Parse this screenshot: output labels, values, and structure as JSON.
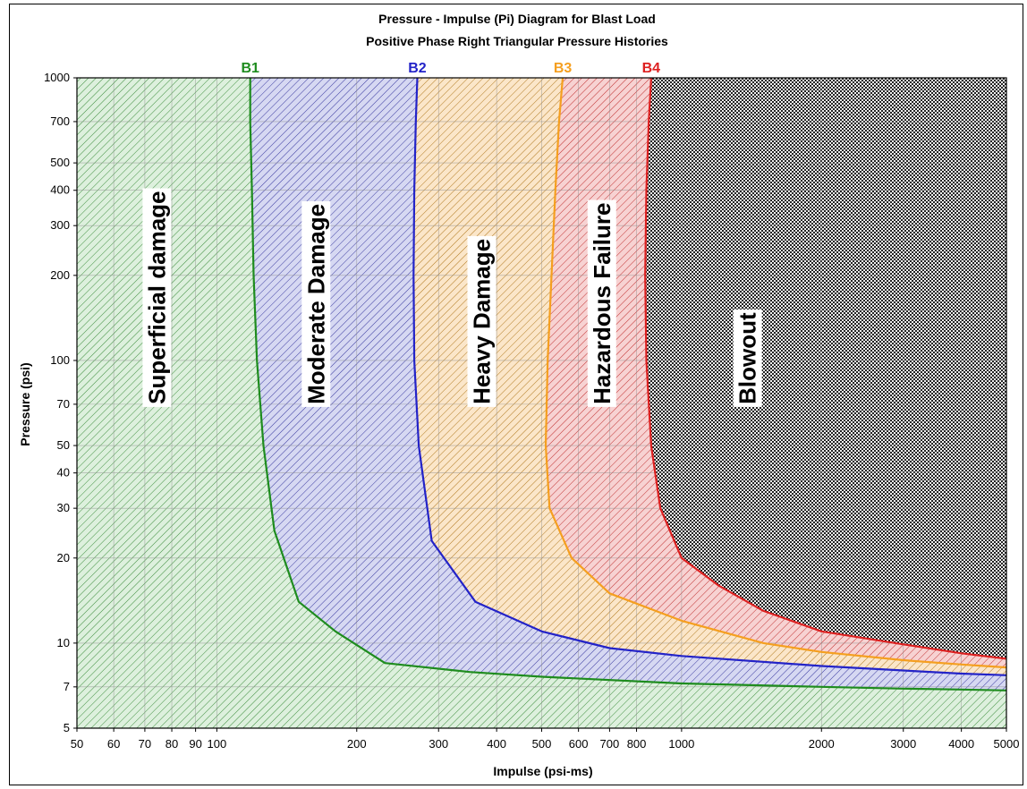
{
  "chart_data": {
    "type": "area",
    "title": "Pressure - Impulse (Pi) Diagram for Blast Load",
    "subtitle": "Positive Phase Right Triangular Pressure Histories",
    "xlabel": "Impulse (psi-ms)",
    "ylabel": "Pressure (psi)",
    "xscale": "log",
    "yscale": "log",
    "xlim": [
      50,
      5000
    ],
    "ylim": [
      5,
      1000
    ],
    "x_ticks": [
      50,
      60,
      70,
      80,
      90,
      100,
      200,
      300,
      400,
      500,
      600,
      700,
      800,
      1000,
      2000,
      3000,
      4000,
      5000
    ],
    "x_tick_labels": [
      "50",
      "60",
      "70",
      "80",
      "90",
      "100",
      "200",
      "300",
      "400",
      "500",
      "600",
      "700",
      "800",
      "1000",
      "2000",
      "3000",
      "4000",
      "5000"
    ],
    "y_ticks": [
      5,
      7,
      10,
      20,
      30,
      40,
      50,
      70,
      100,
      200,
      300,
      400,
      500,
      700,
      1000
    ],
    "y_tick_labels": [
      "5",
      "7",
      "10",
      "20",
      "30",
      "40",
      "50",
      "70",
      "100",
      "200",
      "300",
      "400",
      "500",
      "700",
      "1000"
    ],
    "grid": true,
    "series": [
      {
        "name": "B1",
        "color": "#1e8c1e",
        "x": [
          118,
          118,
          119,
          120,
          122,
          126,
          133,
          150,
          180,
          230,
          350,
          500,
          1000,
          2000,
          3000,
          4000,
          5000
        ],
        "y": [
          1000,
          700,
          400,
          200,
          100,
          50,
          25,
          14,
          11,
          8.5,
          7.9,
          7.6,
          7.2,
          7.0,
          6.9,
          6.85,
          6.8
        ]
      },
      {
        "name": "B2",
        "color": "#2323c8",
        "x": [
          270,
          268,
          266,
          265,
          266,
          272,
          290,
          360,
          500,
          700,
          1000,
          2000,
          3000,
          4000,
          5000
        ],
        "y": [
          1000,
          700,
          400,
          200,
          100,
          50,
          23,
          14,
          11,
          9.6,
          9.0,
          8.3,
          8.0,
          7.8,
          7.7
        ]
      },
      {
        "name": "B3",
        "color": "#f59f1f",
        "x": [
          555,
          545,
          535,
          525,
          515,
          510,
          520,
          580,
          700,
          1000,
          1500,
          2000,
          3000,
          4000,
          5000
        ],
        "y": [
          1000,
          700,
          400,
          200,
          100,
          50,
          30,
          20,
          15,
          12,
          10,
          9.3,
          8.7,
          8.4,
          8.2
        ]
      },
      {
        "name": "B4",
        "color": "#dd2020",
        "x": [
          860,
          850,
          840,
          835,
          840,
          860,
          900,
          1000,
          1200,
          1500,
          2000,
          3000,
          4000,
          5000
        ],
        "y": [
          1000,
          700,
          400,
          200,
          100,
          50,
          30,
          20,
          16,
          13,
          11,
          9.9,
          9.2,
          8.8
        ]
      }
    ],
    "regions": [
      {
        "label": "Superficial damage",
        "fill": "#ddf0dd",
        "hatch": "#3e8e3e",
        "x": 75,
        "y": 70
      },
      {
        "label": "Moderate Damage",
        "fill": "#d6d8f2",
        "hatch": "#3a3aa0",
        "x": 165,
        "y": 70
      },
      {
        "label": "Heavy Damage",
        "fill": "#fbe6c9",
        "hatch": "#b0781e",
        "x": 375,
        "y": 70
      },
      {
        "label": "Hazardous Failure",
        "fill": "#f7d2d2",
        "hatch": "#c03030",
        "x": 680,
        "y": 70
      },
      {
        "label": "Blowout",
        "fill": "#9a9a9a",
        "hatch": "#222222",
        "x": 1400,
        "y": 70
      }
    ]
  }
}
